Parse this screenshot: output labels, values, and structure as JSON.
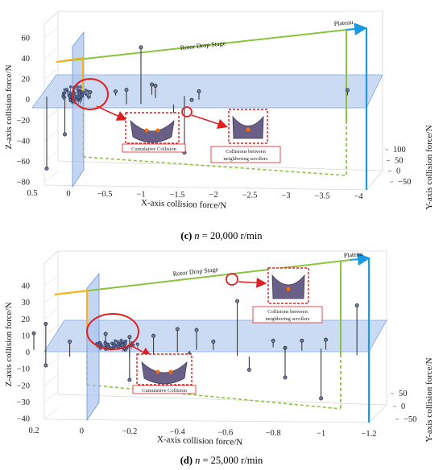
{
  "chart_data": [
    {
      "type": "scatter",
      "panel": "c",
      "caption": {
        "letter": "(c)",
        "n_label": "n",
        "rest": " = 20,000 r/min"
      },
      "xlabel": "X-axis collision force/N",
      "ylabel": "Y-axis collision force/N",
      "zlabel": "Z-axis collision force/N",
      "x_ticks": [
        "0.5",
        "0",
        "−0.5",
        "−1",
        "−1.5",
        "−2",
        "−2.5",
        "−3",
        "−3.5",
        "−4"
      ],
      "y_ticks": [
        "100",
        "50",
        "0",
        "−50"
      ],
      "z_ticks": [
        "60",
        "40",
        "20",
        "0",
        "−20",
        "−40",
        "−60",
        "−80"
      ],
      "xlim": [
        0.5,
        -4
      ],
      "ylim": [
        -50,
        100
      ],
      "zlim": [
        -80,
        60
      ],
      "annotations": {
        "rotor_drop": "Rotor Drop Stage",
        "plateau": "Plateau",
        "cumulative": "Cumulative Collision",
        "neighboring_1": "Collisions between",
        "neighboring_2": "neighboring scrollers"
      },
      "stems": [
        {
          "x": -1.0,
          "z": 55
        },
        {
          "x": -0.8,
          "z": 14
        },
        {
          "x": -1.15,
          "z": 10
        },
        {
          "x": -0.3,
          "z": 6
        },
        {
          "x": -0.05,
          "z": 6
        },
        {
          "x": -0.65,
          "z": 4
        },
        {
          "x": -1.2,
          "z": 12
        },
        {
          "x": -1.8,
          "z": 8
        },
        {
          "x": -1.7,
          "z": 1
        },
        {
          "x": 0.3,
          "z": -70
        },
        {
          "x": -3.85,
          "z": 5
        },
        {
          "x": -1.45,
          "z": -28
        },
        {
          "x": 0.05,
          "z": -35
        },
        {
          "x": -1.6,
          "z": -55
        }
      ],
      "cluster": {
        "x_center": -0.1,
        "z_center": 2,
        "count": 60
      }
    },
    {
      "type": "scatter",
      "panel": "d",
      "caption": {
        "letter": "(d)",
        "n_label": "n",
        "rest": " = 25,000 r/min"
      },
      "xlabel": "X-axis collision force/N",
      "ylabel": "Y-axis collision force/N",
      "zlabel": "Z-axis collision force/N",
      "x_ticks": [
        "0.2",
        "0",
        "−0.2",
        "−0.4",
        "−0.6",
        "−0.8",
        "−1",
        "−1.2"
      ],
      "y_ticks": [
        "50",
        "0",
        "−50"
      ],
      "z_ticks": [
        "40",
        "30",
        "20",
        "10",
        "0",
        "−10",
        "−20",
        "−30",
        "−40"
      ],
      "xlim": [
        0.2,
        -1.2
      ],
      "ylim": [
        -50,
        50
      ],
      "zlim": [
        -40,
        40
      ],
      "annotations": {
        "rotor_drop": "Rotor Drop Stage",
        "plateau": "Plateau",
        "cumulative": "Cumulative Collision",
        "neighboring_1": "Collisions between",
        "neighboring_2": "neighboring scrollers"
      },
      "stems": [
        {
          "x": -0.65,
          "z": 33
        },
        {
          "x": -1.15,
          "z": 30
        },
        {
          "x": 0.15,
          "z": 20
        },
        {
          "x": 0.2,
          "z": 10
        },
        {
          "x": -0.2,
          "z": 12
        },
        {
          "x": -0.3,
          "z": 12
        },
        {
          "x": -0.4,
          "z": 14
        },
        {
          "x": -0.48,
          "z": 12
        },
        {
          "x": -0.1,
          "z": 8
        },
        {
          "x": 0.05,
          "z": 9
        },
        {
          "x": -0.55,
          "z": 5
        },
        {
          "x": -0.8,
          "z": 4
        },
        {
          "x": -0.85,
          "z": 5
        },
        {
          "x": -0.92,
          "z": 6
        },
        {
          "x": -1.02,
          "z": 6
        },
        {
          "x": -0.28,
          "z": -10
        },
        {
          "x": -0.7,
          "z": -8
        },
        {
          "x": -0.85,
          "z": -18
        },
        {
          "x": -1.0,
          "z": -30
        },
        {
          "x": -0.2,
          "z": -18
        },
        {
          "x": 0.15,
          "z": -5
        },
        {
          "x": -0.45,
          "z": -2
        }
      ],
      "cluster": {
        "x_center": -0.15,
        "z_center": 3,
        "count": 70
      }
    }
  ]
}
